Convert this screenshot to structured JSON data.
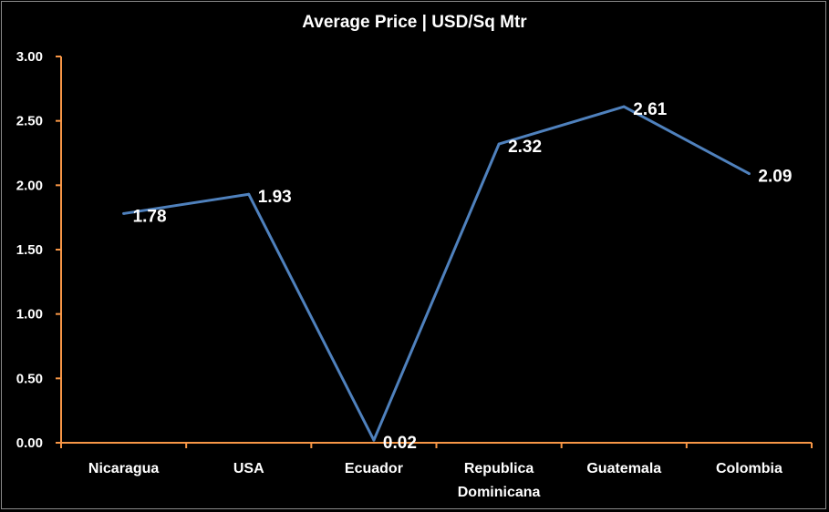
{
  "chart_data": {
    "type": "line",
    "title": "Average Price | USD/Sq Mtr",
    "categories": [
      "Nicaragua",
      "USA",
      "Ecuador",
      "Republica Dominicana",
      "Guatemala",
      "Colombia"
    ],
    "category_lines": [
      [
        "Nicaragua"
      ],
      [
        "USA"
      ],
      [
        "Ecuador"
      ],
      [
        "Republica",
        "Dominicana"
      ],
      [
        "Guatemala"
      ],
      [
        "Colombia"
      ]
    ],
    "values": [
      1.78,
      1.93,
      0.02,
      2.32,
      2.61,
      2.09
    ],
    "data_labels": [
      "1.78",
      "1.93",
      "0.02",
      "2.32",
      "2.61",
      "2.09"
    ],
    "ylim": [
      0,
      3
    ],
    "yticks": [
      "0.00",
      "0.50",
      "1.00",
      "1.50",
      "2.00",
      "2.50",
      "3.00"
    ],
    "grid": false,
    "legend": "none",
    "colors": {
      "line": "#4f81bd",
      "axis": "#f79646",
      "text": "#ffffff",
      "background": "#000000"
    }
  }
}
